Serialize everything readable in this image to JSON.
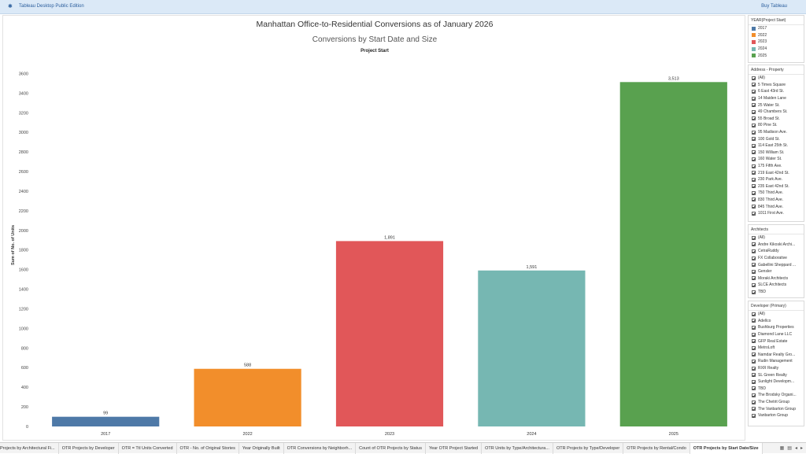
{
  "app": {
    "logo_icon": "tableau-logo-icon",
    "title": "Tableau Desktop Public Edition",
    "buy_label": "Buy Tableau"
  },
  "dashboard": {
    "title": "Manhattan Office-to-Residential Conversions as of January 2026",
    "subtitle": "Conversions by Start Date and Size",
    "header": "Project Start"
  },
  "chart_data": {
    "type": "bar",
    "categories": [
      "2017",
      "2022",
      "2023",
      "2024",
      "2025"
    ],
    "values": [
      99,
      588,
      1891,
      1591,
      3513
    ],
    "value_labels": [
      "99",
      "588",
      "1,891",
      "1,591",
      "3,513"
    ],
    "colors": [
      "#4e79a7",
      "#f28e2b",
      "#e15759",
      "#76b7b2",
      "#59a14f"
    ],
    "ylabel": "Sum of No. of Units",
    "ylim": [
      0,
      3700
    ],
    "yticks": [
      0,
      200,
      400,
      600,
      800,
      1000,
      1200,
      1400,
      1600,
      1800,
      2000,
      2200,
      2400,
      2600,
      2800,
      3000,
      3200,
      3400,
      3600
    ],
    "grid": false
  },
  "filters": {
    "year": {
      "title": "YEAR(Project Start)",
      "items": [
        {
          "label": "2017",
          "color": "#4e79a7"
        },
        {
          "label": "2022",
          "color": "#f28e2b"
        },
        {
          "label": "2023",
          "color": "#e15759"
        },
        {
          "label": "2024",
          "color": "#76b7b2"
        },
        {
          "label": "2025",
          "color": "#59a14f"
        }
      ]
    },
    "address": {
      "title": "Address - Property",
      "items": [
        "(All)",
        "5 Times Square",
        "6 East 43rd St.",
        "14 Maiden Lane",
        "25 Water St.",
        "49 Chambers St.",
        "55 Broad St.",
        "80 Pine St.",
        "95 Madison Ave.",
        "100 Gold St.",
        "114 East 25th St.",
        "150 William St.",
        "160 Water St.",
        "175 Fifth Ave.",
        "219 East 42nd St.",
        "230 Park Ave.",
        "235 East 42nd St.",
        "750 Third Ave.",
        "830 Third Ave.",
        "845 Third Ave.",
        "1011 First Ave."
      ]
    },
    "architects": {
      "title": "Architects",
      "items": [
        "(All)",
        "Andre Kikoski Archi...",
        "CetraRuddy",
        "FX Collaborative",
        "Gabellini Sheppard ...",
        "Gensler",
        "Moraki Architects",
        "SLCE Architects",
        "TBD"
      ]
    },
    "developer": {
      "title": "Developer (Primary)",
      "items": [
        "(All)",
        "Adellco",
        "Bushburg Properties",
        "Diamond Lane LLC",
        "GFP Real Estate",
        "MetroLoft",
        "Namdar Realty Gro...",
        "Rudin Management",
        "RXR Realty",
        "SL Green Realty",
        "Sunlight Developm...",
        "TBD",
        "The Brodsky Organi...",
        "The Chetrit Group",
        "The Vanbarton Group",
        "Vanbarton Group"
      ]
    }
  },
  "tabs": [
    "Projects by Architectural Fi...",
    "OTR Projects by Developer",
    "OTR = Ttl Units Converted",
    "OTR - No. of Original Stories",
    "Year Originally Built",
    "OTR Conversions by Neighborh...",
    "Count of OTR Projects by Status",
    "Year OTR Project Started",
    "OTR Units by Type/Architectura...",
    "OTR Projects by Type/Developer",
    "OTR Projects by Rental/Condo",
    "OTR Projects by Start Date/Size"
  ],
  "active_tab": 11,
  "tab_nav": [
    "grid-icon",
    "list-icon",
    "prev-icon",
    "next-icon"
  ]
}
